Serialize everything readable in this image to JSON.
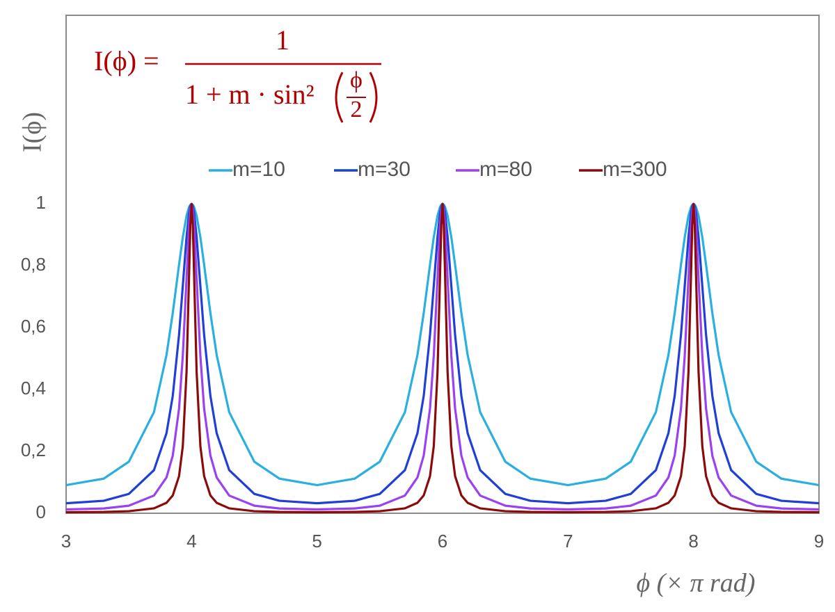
{
  "chart_data": {
    "type": "line",
    "formula": {
      "lhs": "I(ϕ) =",
      "numerator": "1",
      "denominator": "1 + m · sin²",
      "inner_numerator": "ϕ",
      "inner_denominator": "2"
    },
    "y_label": "I(ϕ)",
    "x_label": "ϕ  (× π rad)",
    "legend": "top",
    "xlim": [
      3,
      9
    ],
    "xticks": [
      3,
      4,
      5,
      6,
      7,
      8,
      9
    ],
    "ylim": [
      0,
      1.61
    ],
    "yticks": [
      0,
      {
        "value": 0.2,
        "label": "0,2"
      },
      {
        "value": 0.4,
        "label": "0,4"
      },
      {
        "value": 0.6,
        "label": "0,6"
      },
      {
        "value": 0.8,
        "label": "0,8"
      },
      1
    ],
    "x": [
      3,
      3.3,
      3.5,
      3.7,
      3.8,
      3.85,
      3.9,
      3.93,
      3.96,
      3.98,
      3.99,
      4,
      4.01,
      4.02,
      4.04,
      4.07,
      4.1,
      4.15,
      4.2,
      4.3,
      4.5,
      4.7,
      5,
      5.3,
      5.5,
      5.7,
      5.8,
      5.85,
      5.9,
      5.93,
      5.96,
      5.98,
      5.99,
      6,
      6.01,
      6.02,
      6.04,
      6.07,
      6.1,
      6.15,
      6.2,
      6.3,
      6.5,
      6.7,
      7,
      7.3,
      7.5,
      7.7,
      7.8,
      7.85,
      7.9,
      7.93,
      7.96,
      7.98,
      7.99,
      8,
      8.01,
      8.02,
      8.04,
      8.07,
      8.1,
      8.15,
      8.2,
      8.3,
      8.5,
      8.7,
      9
    ],
    "series": [
      {
        "name": "m=10",
        "color": "#29afe0",
        "values": [
          0.0909,
          0.1119,
          0.1667,
          0.3267,
          0.5115,
          0.6473,
          0.8034,
          0.8925,
          0.9621,
          0.9902,
          0.9975,
          1,
          0.9975,
          0.9902,
          0.9621,
          0.8925,
          0.8034,
          0.6473,
          0.5115,
          0.3267,
          0.1667,
          0.1119,
          0.0909,
          0.1119,
          0.1667,
          0.3267,
          0.5115,
          0.6473,
          0.8034,
          0.8925,
          0.9621,
          0.9902,
          0.9975,
          1,
          0.9975,
          0.9902,
          0.9621,
          0.8925,
          0.8034,
          0.6473,
          0.5115,
          0.3267,
          0.1667,
          0.1119,
          0.0909,
          0.1119,
          0.1667,
          0.3267,
          0.5115,
          0.6473,
          0.8034,
          0.8925,
          0.9621,
          0.9902,
          0.9975,
          1,
          0.9975,
          0.9902,
          0.9621,
          0.8925,
          0.8034,
          0.6473,
          0.5115,
          0.3267,
          0.1667,
          0.1119,
          0.0909
        ]
      },
      {
        "name": "m=30",
        "color": "#1f3fd6",
        "values": [
          0.0323,
          0.0403,
          0.0625,
          0.1392,
          0.2587,
          0.3795,
          0.5766,
          0.7346,
          0.8942,
          0.9713,
          0.9927,
          1,
          0.9927,
          0.9713,
          0.8942,
          0.7346,
          0.5766,
          0.3795,
          0.2587,
          0.1392,
          0.0625,
          0.0403,
          0.0323,
          0.0403,
          0.0625,
          0.1392,
          0.2587,
          0.3795,
          0.5766,
          0.7346,
          0.8942,
          0.9713,
          0.9927,
          1,
          0.9927,
          0.9713,
          0.8942,
          0.7346,
          0.5766,
          0.3795,
          0.2587,
          0.1392,
          0.0625,
          0.0403,
          0.0323,
          0.0403,
          0.0625,
          0.1392,
          0.2587,
          0.3795,
          0.5766,
          0.7346,
          0.8942,
          0.9713,
          0.9927,
          1,
          0.9927,
          0.9713,
          0.8942,
          0.7346,
          0.5766,
          0.3795,
          0.2587,
          0.1392,
          0.0625,
          0.0403,
          0.0323
        ]
      },
      {
        "name": "m=80",
        "color": "#9b42f0",
        "values": [
          0.0123,
          0.0155,
          0.0244,
          0.0572,
          0.1157,
          0.1866,
          0.3381,
          0.5094,
          0.7602,
          0.9268,
          0.9806,
          1,
          0.9806,
          0.9268,
          0.7602,
          0.5094,
          0.3381,
          0.1866,
          0.1157,
          0.0572,
          0.0244,
          0.0155,
          0.0123,
          0.0155,
          0.0244,
          0.0572,
          0.1157,
          0.1866,
          0.3381,
          0.5094,
          0.7602,
          0.9268,
          0.9806,
          1,
          0.9806,
          0.9268,
          0.7602,
          0.5094,
          0.3381,
          0.1866,
          0.1157,
          0.0572,
          0.0244,
          0.0155,
          0.0123,
          0.0155,
          0.0244,
          0.0572,
          0.1157,
          0.1866,
          0.3381,
          0.5094,
          0.7602,
          0.9268,
          0.9806,
          1,
          0.9806,
          0.9268,
          0.7602,
          0.5094,
          0.3381,
          0.1866,
          0.1157,
          0.0572,
          0.0244,
          0.0155,
          0.0123
        ]
      },
      {
        "name": "m=300",
        "color": "#8b0b0b",
        "values": [
          0.0033,
          0.0042,
          0.0066,
          0.0159,
          0.0337,
          0.0576,
          0.1199,
          0.2168,
          0.4581,
          0.7716,
          0.9311,
          1,
          0.9311,
          0.7716,
          0.4581,
          0.2168,
          0.1199,
          0.0576,
          0.0337,
          0.0159,
          0.0066,
          0.0042,
          0.0033,
          0.0042,
          0.0066,
          0.0159,
          0.0337,
          0.0576,
          0.1199,
          0.2168,
          0.4581,
          0.7716,
          0.9311,
          1,
          0.9311,
          0.7716,
          0.4581,
          0.2168,
          0.1199,
          0.0576,
          0.0337,
          0.0159,
          0.0066,
          0.0042,
          0.0033,
          0.0042,
          0.0066,
          0.0159,
          0.0337,
          0.0576,
          0.1199,
          0.2168,
          0.4581,
          0.7716,
          0.9311,
          1,
          0.9311,
          0.7716,
          0.4581,
          0.2168,
          0.1199,
          0.0576,
          0.0337,
          0.0159,
          0.0066,
          0.0042,
          0.0033
        ]
      }
    ]
  }
}
